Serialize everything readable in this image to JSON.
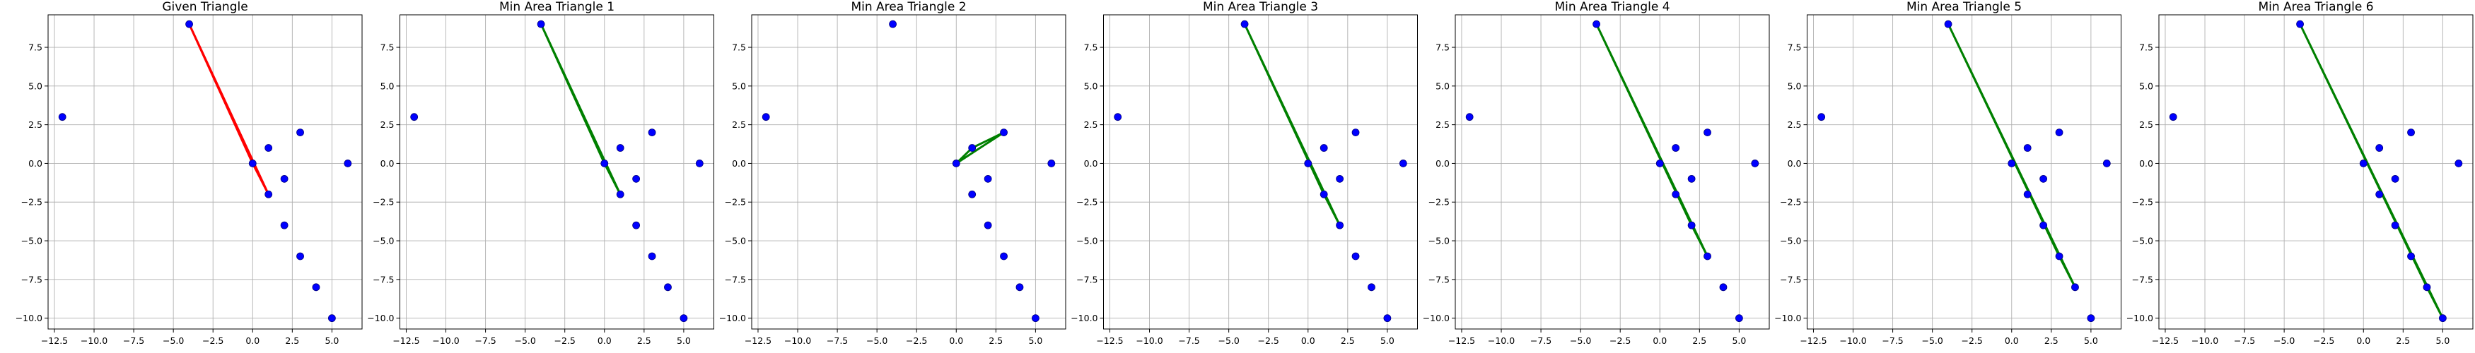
{
  "chart_data": [
    {
      "type": "scatter",
      "title": "Given Triangle",
      "xlim": [
        -12.9,
        6.9
      ],
      "ylim": [
        -10.7,
        9.6
      ],
      "xticks": [
        -12.5,
        -10.0,
        -7.5,
        -5.0,
        -2.5,
        0.0,
        2.5,
        5.0
      ],
      "xtick_labels": [
        "−12.5",
        "−10.0",
        "−7.5",
        "−5.0",
        "−2.5",
        "0.0",
        "2.5",
        "5.0"
      ],
      "yticks": [
        -10.0,
        -7.5,
        -5.0,
        -2.5,
        0.0,
        2.5,
        5.0,
        7.5
      ],
      "ytick_labels": [
        "−10.0",
        "−7.5",
        "−5.0",
        "−2.5",
        "0.0",
        "2.5",
        "5.0",
        "7.5"
      ],
      "grid": true,
      "points": [
        [
          -12,
          3
        ],
        [
          -4,
          9
        ],
        [
          0,
          0
        ],
        [
          1,
          -2
        ],
        [
          1,
          1
        ],
        [
          2,
          -1
        ],
        [
          2,
          -4
        ],
        [
          3,
          2
        ],
        [
          3,
          -6
        ],
        [
          4,
          -8
        ],
        [
          5,
          -10
        ],
        [
          6,
          0
        ]
      ],
      "triangle": [
        [
          -4,
          9
        ],
        [
          0,
          0
        ],
        [
          1,
          -2
        ]
      ],
      "triangle_color": "#ff0000"
    },
    {
      "type": "scatter",
      "title": "Min Area Triangle 1",
      "xlim": [
        -12.9,
        6.9
      ],
      "ylim": [
        -10.7,
        9.6
      ],
      "xticks": [
        -12.5,
        -10.0,
        -7.5,
        -5.0,
        -2.5,
        0.0,
        2.5,
        5.0
      ],
      "xtick_labels": [
        "−12.5",
        "−10.0",
        "−7.5",
        "−5.0",
        "−2.5",
        "0.0",
        "2.5",
        "5.0"
      ],
      "yticks": [
        -10.0,
        -7.5,
        -5.0,
        -2.5,
        0.0,
        2.5,
        5.0,
        7.5
      ],
      "ytick_labels": [
        "−10.0",
        "−7.5",
        "−5.0",
        "−2.5",
        "0.0",
        "2.5",
        "5.0",
        "7.5"
      ],
      "grid": true,
      "points": [
        [
          -12,
          3
        ],
        [
          -4,
          9
        ],
        [
          0,
          0
        ],
        [
          1,
          -2
        ],
        [
          1,
          1
        ],
        [
          2,
          -1
        ],
        [
          2,
          -4
        ],
        [
          3,
          2
        ],
        [
          3,
          -6
        ],
        [
          4,
          -8
        ],
        [
          5,
          -10
        ],
        [
          6,
          0
        ]
      ],
      "triangle": [
        [
          -4,
          9
        ],
        [
          0,
          0
        ],
        [
          1,
          -2
        ]
      ],
      "triangle_color": "#008000"
    },
    {
      "type": "scatter",
      "title": "Min Area Triangle 2",
      "xlim": [
        -12.9,
        6.9
      ],
      "ylim": [
        -10.7,
        9.6
      ],
      "xticks": [
        -12.5,
        -10.0,
        -7.5,
        -5.0,
        -2.5,
        0.0,
        2.5,
        5.0
      ],
      "xtick_labels": [
        "−12.5",
        "−10.0",
        "−7.5",
        "−5.0",
        "−2.5",
        "0.0",
        "2.5",
        "5.0"
      ],
      "yticks": [
        -10.0,
        -7.5,
        -5.0,
        -2.5,
        0.0,
        2.5,
        5.0,
        7.5
      ],
      "ytick_labels": [
        "−10.0",
        "−7.5",
        "−5.0",
        "−2.5",
        "0.0",
        "2.5",
        "5.0",
        "7.5"
      ],
      "grid": true,
      "points": [
        [
          -12,
          3
        ],
        [
          -4,
          9
        ],
        [
          0,
          0
        ],
        [
          1,
          -2
        ],
        [
          1,
          1
        ],
        [
          2,
          -1
        ],
        [
          2,
          -4
        ],
        [
          3,
          2
        ],
        [
          3,
          -6
        ],
        [
          4,
          -8
        ],
        [
          5,
          -10
        ],
        [
          6,
          0
        ]
      ],
      "triangle": [
        [
          0,
          0
        ],
        [
          1,
          1
        ],
        [
          3,
          2
        ]
      ],
      "triangle_color": "#008000"
    },
    {
      "type": "scatter",
      "title": "Min Area Triangle 3",
      "xlim": [
        -12.9,
        6.9
      ],
      "ylim": [
        -10.7,
        9.6
      ],
      "xticks": [
        -12.5,
        -10.0,
        -7.5,
        -5.0,
        -2.5,
        0.0,
        2.5,
        5.0
      ],
      "xtick_labels": [
        "−12.5",
        "−10.0",
        "−7.5",
        "−5.0",
        "−2.5",
        "0.0",
        "2.5",
        "5.0"
      ],
      "yticks": [
        -10.0,
        -7.5,
        -5.0,
        -2.5,
        0.0,
        2.5,
        5.0,
        7.5
      ],
      "ytick_labels": [
        "−10.0",
        "−7.5",
        "−5.0",
        "−2.5",
        "0.0",
        "2.5",
        "5.0",
        "7.5"
      ],
      "grid": true,
      "points": [
        [
          -12,
          3
        ],
        [
          -4,
          9
        ],
        [
          0,
          0
        ],
        [
          1,
          -2
        ],
        [
          1,
          1
        ],
        [
          2,
          -1
        ],
        [
          2,
          -4
        ],
        [
          3,
          2
        ],
        [
          3,
          -6
        ],
        [
          4,
          -8
        ],
        [
          5,
          -10
        ],
        [
          6,
          0
        ]
      ],
      "triangle": [
        [
          -4,
          9
        ],
        [
          1,
          -2
        ],
        [
          2,
          -4
        ]
      ],
      "triangle_color": "#008000"
    },
    {
      "type": "scatter",
      "title": "Min Area Triangle 4",
      "xlim": [
        -12.9,
        6.9
      ],
      "ylim": [
        -10.7,
        9.6
      ],
      "xticks": [
        -12.5,
        -10.0,
        -7.5,
        -5.0,
        -2.5,
        0.0,
        2.5,
        5.0
      ],
      "xtick_labels": [
        "−12.5",
        "−10.0",
        "−7.5",
        "−5.0",
        "−2.5",
        "0.0",
        "2.5",
        "5.0"
      ],
      "yticks": [
        -10.0,
        -7.5,
        -5.0,
        -2.5,
        0.0,
        2.5,
        5.0,
        7.5
      ],
      "ytick_labels": [
        "−10.0",
        "−7.5",
        "−5.0",
        "−2.5",
        "0.0",
        "2.5",
        "5.0",
        "7.5"
      ],
      "grid": true,
      "points": [
        [
          -12,
          3
        ],
        [
          -4,
          9
        ],
        [
          0,
          0
        ],
        [
          1,
          -2
        ],
        [
          1,
          1
        ],
        [
          2,
          -1
        ],
        [
          2,
          -4
        ],
        [
          3,
          2
        ],
        [
          3,
          -6
        ],
        [
          4,
          -8
        ],
        [
          5,
          -10
        ],
        [
          6,
          0
        ]
      ],
      "triangle": [
        [
          -4,
          9
        ],
        [
          2,
          -4
        ],
        [
          3,
          -6
        ]
      ],
      "triangle_color": "#008000"
    },
    {
      "type": "scatter",
      "title": "Min Area Triangle 5",
      "xlim": [
        -12.9,
        6.9
      ],
      "ylim": [
        -10.7,
        9.6
      ],
      "xticks": [
        -12.5,
        -10.0,
        -7.5,
        -5.0,
        -2.5,
        0.0,
        2.5,
        5.0
      ],
      "xtick_labels": [
        "−12.5",
        "−10.0",
        "−7.5",
        "−5.0",
        "−2.5",
        "0.0",
        "2.5",
        "5.0"
      ],
      "yticks": [
        -10.0,
        -7.5,
        -5.0,
        -2.5,
        0.0,
        2.5,
        5.0,
        7.5
      ],
      "ytick_labels": [
        "−10.0",
        "−7.5",
        "−5.0",
        "−2.5",
        "0.0",
        "2.5",
        "5.0",
        "7.5"
      ],
      "grid": true,
      "points": [
        [
          -12,
          3
        ],
        [
          -4,
          9
        ],
        [
          0,
          0
        ],
        [
          1,
          -2
        ],
        [
          1,
          1
        ],
        [
          2,
          -1
        ],
        [
          2,
          -4
        ],
        [
          3,
          2
        ],
        [
          3,
          -6
        ],
        [
          4,
          -8
        ],
        [
          5,
          -10
        ],
        [
          6,
          0
        ]
      ],
      "triangle": [
        [
          -4,
          9
        ],
        [
          3,
          -6
        ],
        [
          4,
          -8
        ]
      ],
      "triangle_color": "#008000"
    },
    {
      "type": "scatter",
      "title": "Min Area Triangle 6",
      "xlim": [
        -12.9,
        6.9
      ],
      "ylim": [
        -10.7,
        9.6
      ],
      "xticks": [
        -12.5,
        -10.0,
        -7.5,
        -5.0,
        -2.5,
        0.0,
        2.5,
        5.0
      ],
      "xtick_labels": [
        "−12.5",
        "−10.0",
        "−7.5",
        "−5.0",
        "−2.5",
        "0.0",
        "2.5",
        "5.0"
      ],
      "yticks": [
        -10.0,
        -7.5,
        -5.0,
        -2.5,
        0.0,
        2.5,
        5.0,
        7.5
      ],
      "ytick_labels": [
        "−10.0",
        "−7.5",
        "−5.0",
        "−2.5",
        "0.0",
        "2.5",
        "5.0",
        "7.5"
      ],
      "grid": true,
      "points": [
        [
          -12,
          3
        ],
        [
          -4,
          9
        ],
        [
          0,
          0
        ],
        [
          1,
          -2
        ],
        [
          1,
          1
        ],
        [
          2,
          -1
        ],
        [
          2,
          -4
        ],
        [
          3,
          2
        ],
        [
          3,
          -6
        ],
        [
          4,
          -8
        ],
        [
          5,
          -10
        ],
        [
          6,
          0
        ]
      ],
      "triangle": [
        [
          -4,
          9
        ],
        [
          4,
          -8
        ],
        [
          5,
          -10
        ]
      ],
      "triangle_color": "#008000"
    }
  ],
  "colors": {
    "point_fill": "#0000ff",
    "point_edge": "#000080"
  }
}
